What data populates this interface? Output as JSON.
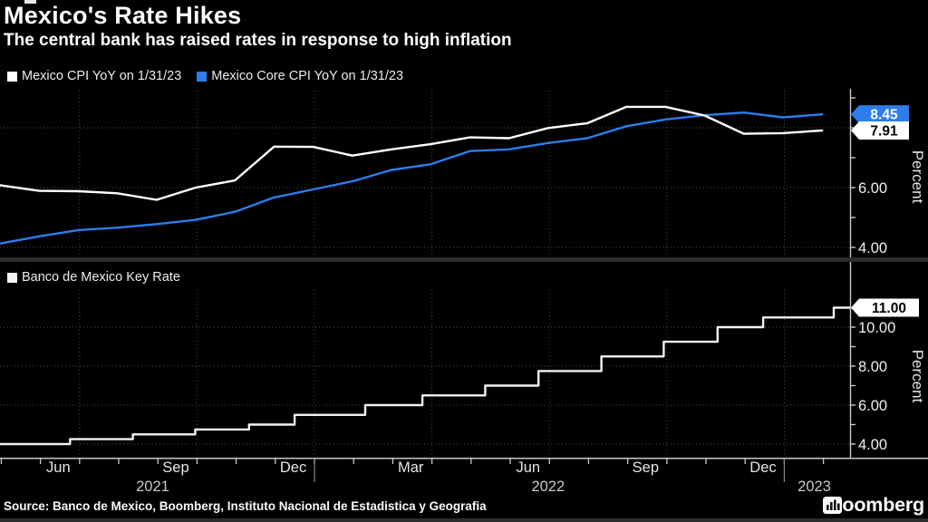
{
  "header": {
    "title": "Mexico's Rate Hikes",
    "subtitle": "The central bank has raised rates in response to high inflation"
  },
  "source_line": "Source: Banco de Mexico, Boomberg, Instituto Nacional de Estadistica y Geografia",
  "brand": {
    "name": "Bloomberg",
    "icon": "bar-chart-icon"
  },
  "colors": {
    "background": "#000000",
    "cpi_line": "#ffffff",
    "core_cpi_line": "#2d7deb",
    "key_rate_line": "#f2f2f2",
    "grid": "#4f4f4f",
    "axis": "#c8c8c8",
    "tick_text": "#f0f0f0",
    "percent_text": "#e5e5e5",
    "separator": "#2d2d2d",
    "year_divider": "#8a8a8a"
  },
  "x_axis": {
    "month_labels": [
      {
        "label": "Jun",
        "t": 1.49
      },
      {
        "label": "Sep",
        "t": 4.49
      },
      {
        "label": "Dec",
        "t": 7.49
      },
      {
        "label": "Mar",
        "t": 10.49
      },
      {
        "label": "Jun",
        "t": 13.49
      },
      {
        "label": "Sep",
        "t": 16.49
      },
      {
        "label": "Dec",
        "t": 19.49
      }
    ],
    "year_labels": [
      {
        "label": "2021",
        "t": 3.9
      },
      {
        "label": "2022",
        "t": 14.0
      },
      {
        "label": "2023",
        "t": 20.8
      }
    ],
    "year_divider_dates": [
      "2022-01-01",
      "2023-01-01"
    ],
    "quarter_gridline_dates": [
      "2021-07-01",
      "2021-10-01",
      "2022-01-01",
      "2022-04-01",
      "2022-07-01",
      "2022-10-01",
      "2023-01-01"
    ]
  },
  "chart_data": [
    {
      "type": "line",
      "panel": "top",
      "ylabel": "Percent",
      "ylim": [
        3.6,
        9.2
      ],
      "ytick_labels": [
        "4.00",
        "6.00"
      ],
      "ytick_values_labeled": [
        4,
        6
      ],
      "ytick_values_minor": [
        4,
        5,
        6,
        7,
        8,
        9
      ],
      "grid_values": [
        4,
        6,
        8
      ],
      "x_months": [
        "2021-04",
        "2021-05",
        "2021-06",
        "2021-07",
        "2021-08",
        "2021-09",
        "2021-10",
        "2021-11",
        "2021-12",
        "2022-01",
        "2022-02",
        "2022-03",
        "2022-04",
        "2022-05",
        "2022-06",
        "2022-07",
        "2022-08",
        "2022-09",
        "2022-10",
        "2022-11",
        "2022-12",
        "2023-01"
      ],
      "series": [
        {
          "name": "Mexico CPI YoY on 1/31/23",
          "color": "#ffffff",
          "values": [
            6.08,
            5.89,
            5.88,
            5.81,
            5.59,
            6.0,
            6.24,
            7.37,
            7.36,
            7.07,
            7.28,
            7.45,
            7.68,
            7.65,
            7.99,
            8.15,
            8.7,
            8.7,
            8.41,
            7.8,
            7.82,
            7.91
          ],
          "end_label": {
            "text": "7.91",
            "value": 7.91,
            "bg": "#ffffff",
            "fg": "#000000"
          }
        },
        {
          "name": "Mexico Core CPI YoY on 1/31/23",
          "color": "#2d7deb",
          "values": [
            4.13,
            4.37,
            4.58,
            4.66,
            4.78,
            4.92,
            5.19,
            5.67,
            5.94,
            6.21,
            6.59,
            6.78,
            7.22,
            7.28,
            7.49,
            7.65,
            8.05,
            8.28,
            8.42,
            8.51,
            8.35,
            8.45
          ],
          "end_label": {
            "text": "8.45",
            "value": 8.45,
            "bg": "#2d7deb",
            "fg": "#ffffff"
          }
        }
      ]
    },
    {
      "type": "step",
      "panel": "bottom",
      "ylabel": "Percent",
      "ylim": [
        3.3,
        12.0
      ],
      "ytick_labels": [
        "4.00",
        "6.00",
        "8.00",
        "10.00"
      ],
      "ytick_values_labeled": [
        4,
        6,
        8,
        10
      ],
      "ytick_values_minor": [
        4,
        5,
        6,
        7,
        8,
        9,
        10,
        11
      ],
      "grid_values": [
        4,
        6,
        8,
        10
      ],
      "series": [
        {
          "name": "Banco de Mexico Key Rate",
          "color": "#f2f2f2",
          "steps": [
            {
              "date": "2021-05-01",
              "rate": 4.0
            },
            {
              "date": "2021-06-24",
              "rate": 4.25
            },
            {
              "date": "2021-08-12",
              "rate": 4.5
            },
            {
              "date": "2021-09-30",
              "rate": 4.75
            },
            {
              "date": "2021-11-11",
              "rate": 5.0
            },
            {
              "date": "2021-12-16",
              "rate": 5.5
            },
            {
              "date": "2022-02-10",
              "rate": 6.0
            },
            {
              "date": "2022-03-24",
              "rate": 6.5
            },
            {
              "date": "2022-05-12",
              "rate": 7.0
            },
            {
              "date": "2022-06-23",
              "rate": 7.75
            },
            {
              "date": "2022-08-11",
              "rate": 8.5
            },
            {
              "date": "2022-09-29",
              "rate": 9.25
            },
            {
              "date": "2022-11-10",
              "rate": 10.0
            },
            {
              "date": "2022-12-15",
              "rate": 10.5
            },
            {
              "date": "2023-02-09",
              "rate": 11.0
            }
          ],
          "end_label": {
            "text": "11.00",
            "value": 11.0,
            "bg": "#ffffff",
            "fg": "#000000"
          }
        }
      ]
    }
  ]
}
